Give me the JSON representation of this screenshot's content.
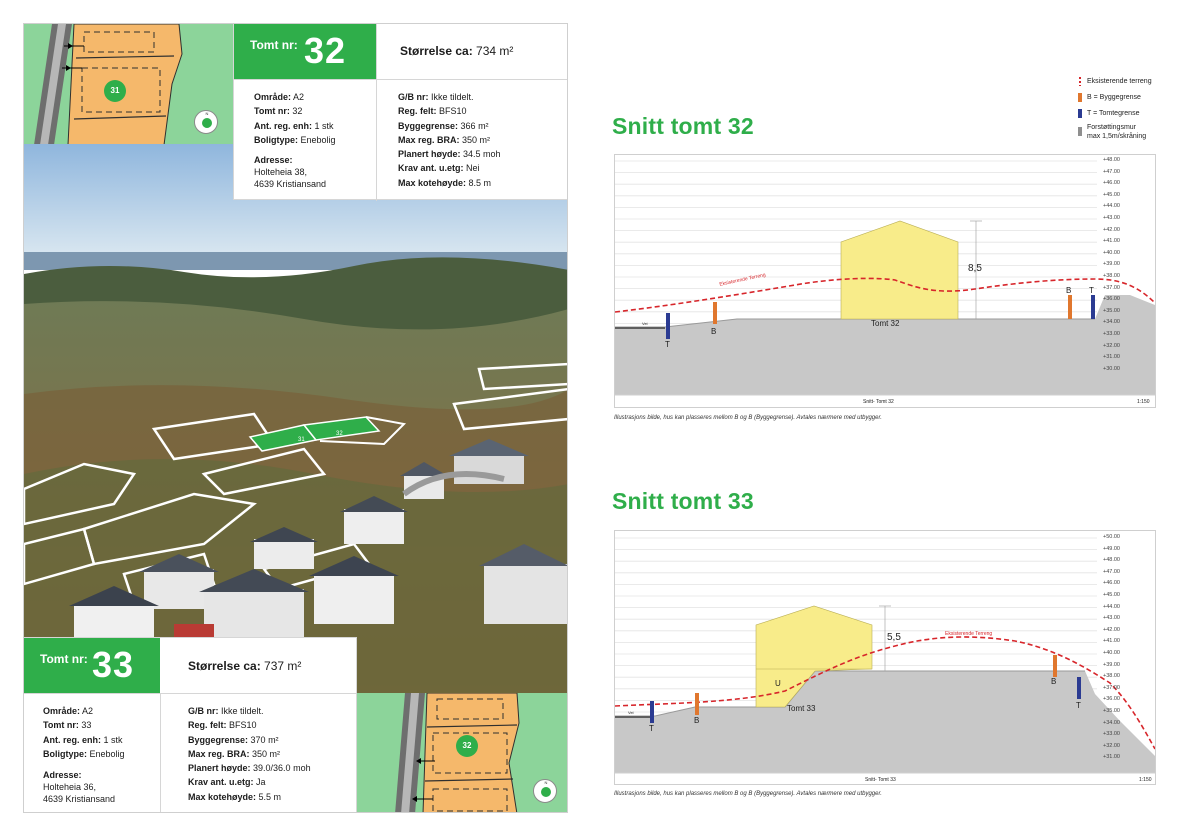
{
  "colors": {
    "brand_green": "#2fae4a",
    "map_green": "#8cd49a",
    "plot_orange": "#f5b86b",
    "house_yellow": "#f8ec8a",
    "terrain_red": "#d7262b",
    "byggegrense_orange": "#e0772e",
    "tomtegrense_blue": "#2b3b92",
    "wall_gray": "#8f8f8f",
    "ground_gray": "#c8c8c8"
  },
  "map_top": {
    "plot_labels": [
      "31"
    ],
    "compass": "N"
  },
  "map_bottom": {
    "plot_labels": [
      "32"
    ],
    "compass": "N"
  },
  "aerial": {
    "plot_labels": [
      "31",
      "32"
    ]
  },
  "tomt32": {
    "label": "Tomt nr:",
    "number": "32",
    "size_label": "Størrelse ca:",
    "size_value": "734 m²",
    "left_rows": [
      {
        "k": "Område:",
        "v": "A2"
      },
      {
        "k": "Tomt nr:",
        "v": "32"
      },
      {
        "k": "Ant. reg. enh:",
        "v": "1 stk"
      },
      {
        "k": "Boligtype:",
        "v": "Enebolig"
      }
    ],
    "address_label": "Adresse:",
    "address_line1": "Holteheia 38,",
    "address_line2": "4639 Kristiansand",
    "right_rows": [
      {
        "k": "G/B nr:",
        "v": "Ikke tildelt."
      },
      {
        "k": "Reg. felt:",
        "v": "BFS10"
      },
      {
        "k": "Byggegrense:",
        "v": "366 m²"
      },
      {
        "k": "Max reg. BRA:",
        "v": "350 m²"
      },
      {
        "k": "Planert høyde:",
        "v": "34.5 moh"
      },
      {
        "k": "Krav ant. u.etg:",
        "v": "Nei"
      },
      {
        "k": "Max kotehøyde:",
        "v": "8.5 m"
      }
    ]
  },
  "tomt33": {
    "label": "Tomt nr:",
    "number": "33",
    "size_label": "Størrelse ca:",
    "size_value": "737 m²",
    "left_rows": [
      {
        "k": "Område:",
        "v": "A2"
      },
      {
        "k": "Tomt nr:",
        "v": "33"
      },
      {
        "k": "Ant. reg. enh:",
        "v": "1 stk"
      },
      {
        "k": "Boligtype:",
        "v": "Enebolig"
      }
    ],
    "address_label": "Adresse:",
    "address_line1": "Holteheia 36,",
    "address_line2": "4639 Kristiansand",
    "right_rows": [
      {
        "k": "G/B nr:",
        "v": "Ikke tildelt."
      },
      {
        "k": "Reg. felt:",
        "v": "BFS10"
      },
      {
        "k": "Byggegrense:",
        "v": "370 m²"
      },
      {
        "k": "Max reg. BRA:",
        "v": "350 m²"
      },
      {
        "k": "Planert høyde:",
        "v": "39.0/36.0 moh"
      },
      {
        "k": "Krav ant. u.etg:",
        "v": "Ja"
      },
      {
        "k": "Max kotehøyde:",
        "v": "5.5 m"
      }
    ]
  },
  "legend": {
    "terrain": "Eksisterende terreng",
    "byggegrense": "B = Byggegrense",
    "tomtegrense": "T = Tomtegrense",
    "wall_line1": "Forstøttingsmur",
    "wall_line2": "max 1,5m/skråning"
  },
  "snitt32": {
    "title": "Snitt tomt 32",
    "footer_label": "Snitt- Tomt 32",
    "scale": "1:150",
    "tomt_label": "Tomt 32",
    "height_label": "8,5",
    "terrain_label": "Eksisterende Terreng",
    "vei_label": "Vei",
    "marker_labels": {
      "t_left": "T",
      "b_left": "B",
      "b_right": "B",
      "t_right": "T"
    },
    "levels": [
      "+48.00",
      "+47.00",
      "+46.00",
      "+45.00",
      "+44.00",
      "+43.00",
      "+42.00",
      "+41.00",
      "+40.00",
      "+39.00",
      "+38.00",
      "+37.00",
      "+36.00",
      "+35.00",
      "+34.00",
      "+33.00",
      "+32.00",
      "+31.00",
      "+30.00"
    ],
    "caption": "Illustrasjons bilde, hus kan plasseres mellom B og B (Byggegrense). Avtales nærmere med utbygger."
  },
  "snitt33": {
    "title": "Snitt tomt 33",
    "footer_label": "Snitt- Tomt 33",
    "scale": "1:150",
    "tomt_label": "Tomt 33",
    "height_label": "5,5",
    "terrain_label": "Eksisterende Terreng",
    "u_label": "U",
    "vei_label": "Vei",
    "marker_labels": {
      "t_left": "T",
      "b_left": "B",
      "b_right": "B",
      "t_right": "T"
    },
    "levels": [
      "+50.00",
      "+49.00",
      "+48.00",
      "+47.00",
      "+46.00",
      "+45.00",
      "+44.00",
      "+43.00",
      "+42.00",
      "+41.00",
      "+40.00",
      "+39.00",
      "+38.00",
      "+37.00",
      "+36.00",
      "+35.00",
      "+34.00",
      "+33.00",
      "+32.00",
      "+31.00"
    ],
    "caption": "Illustrasjons bilde, hus kan plasseres mellom B og B (Byggegrense). Avtales nærmere med utbygger."
  }
}
